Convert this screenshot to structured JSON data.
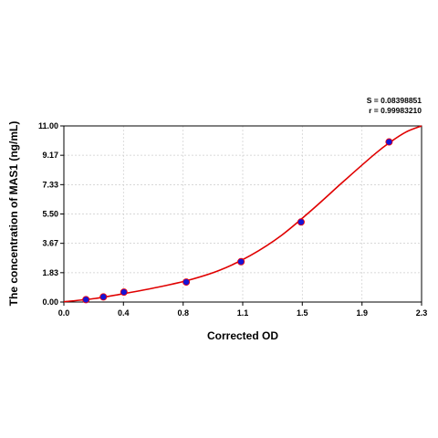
{
  "chart_data": {
    "type": "scatter",
    "xlabel": "Corrected OD",
    "ylabel": "The concentration of MAS1 (ng/mL)",
    "xlim": [
      0.0,
      2.3
    ],
    "ylim": [
      0.0,
      11.0
    ],
    "x_ticks": [
      "0.0",
      "0.4",
      "0.8",
      "1.1",
      "1.5",
      "1.9",
      "2.3"
    ],
    "x_tick_values": [
      0.0,
      0.383,
      0.767,
      1.15,
      1.533,
      1.917,
      2.3
    ],
    "y_ticks": [
      "0.00",
      "1.83",
      "3.67",
      "5.50",
      "7.33",
      "9.17",
      "11.00"
    ],
    "y_tick_values": [
      0.0,
      1.833,
      3.667,
      5.5,
      7.333,
      9.167,
      11.0
    ],
    "grid": true,
    "stats": {
      "s": "S = 0.08398851",
      "r": "r = 0.99983210"
    },
    "series": [
      {
        "values_x": [
          0.142,
          0.254,
          0.386,
          0.787,
          1.139,
          1.525,
          2.091
        ],
        "values_y": [
          0.15,
          0.32,
          0.62,
          1.25,
          2.52,
          5.0,
          10.0
        ]
      }
    ],
    "fit_curve": {
      "x": [
        0.0,
        0.2,
        0.4,
        0.6,
        0.8,
        1.0,
        1.2,
        1.4,
        1.6,
        1.8,
        2.0,
        2.1,
        2.2,
        2.3
      ],
      "y": [
        0.02,
        0.22,
        0.55,
        0.92,
        1.36,
        1.98,
        2.91,
        4.17,
        5.8,
        7.55,
        9.25,
        10.0,
        10.62,
        11.0
      ]
    },
    "colors": {
      "curve": "#e00000",
      "marker_fill": "#1515d6",
      "marker_edge": "#ff0000",
      "grid": "#cccccc",
      "axis": "#000000"
    }
  }
}
